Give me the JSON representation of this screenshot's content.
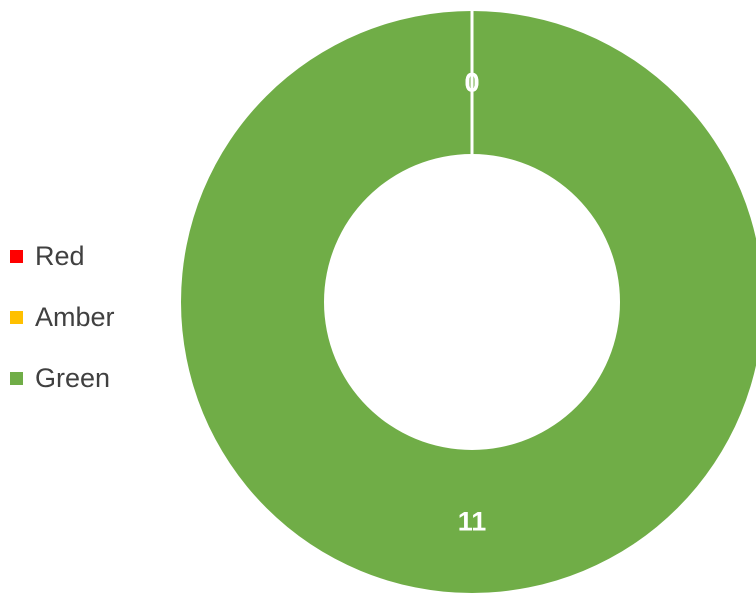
{
  "chart_data": {
    "type": "pie",
    "donut": true,
    "categories": [
      "Red",
      "Amber",
      "Green"
    ],
    "values": [
      0,
      0,
      11
    ],
    "colors": [
      "#ff0000",
      "#ffc000",
      "#70ad47"
    ],
    "data_labels": [
      "0",
      "0",
      "11"
    ],
    "legend": {
      "placement": "left",
      "entries": [
        "Red",
        "Amber",
        "Green"
      ]
    }
  }
}
